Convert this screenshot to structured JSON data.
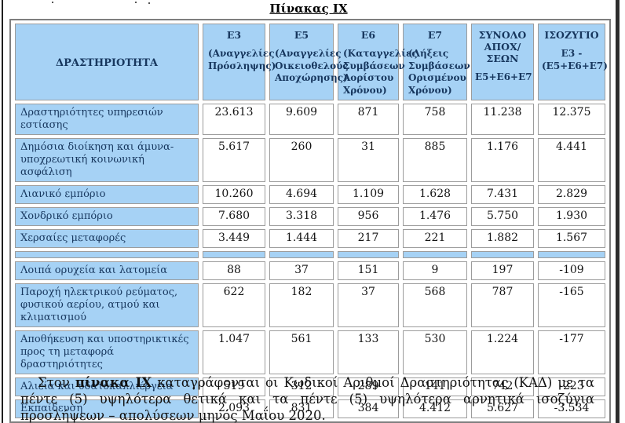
{
  "page": {
    "title": "Πίνακας IX"
  },
  "colors": {
    "cell_blue": "#A6D2F5",
    "header_text_navy": "#17375E",
    "border_gray": "#9c9c9c"
  },
  "table": {
    "header": {
      "activity": "ΔΡΑΣΤΗΡΙΟΤΗΤΑ",
      "columns": [
        {
          "code": "E3",
          "desc": "(Αναγγελίες Πρόσληψης)"
        },
        {
          "code": "E5",
          "desc": "(Αναγγελίες Οικειοθελούς Αποχώρησης)"
        },
        {
          "code": "E6",
          "desc": "(Καταγγελίες Συμβάσεων Αορίστου Χρόνου)"
        },
        {
          "code": "E7",
          "desc": "(Λήξεις Συμβάσεων Ορισμένου Χρόνου)"
        },
        {
          "code": "ΣΥΝΟΛΟ ΑΠΟΧ/ΣΕΩΝ",
          "desc": "E5+E6+E7"
        },
        {
          "code": "ΙΣΟΖΥΓΙΟ",
          "desc": "E3 - (E5+E6+E7)"
        }
      ]
    },
    "rows": [
      {
        "activity": "Δραστηριότητες υπηρεσιών εστίασης",
        "values": [
          "23.613",
          "9.609",
          "871",
          "758",
          "11.238",
          "12.375"
        ]
      },
      {
        "activity": "Δημόσια διοίκηση και άμυνα- υποχρεωτική κοινωνική ασφάλιση",
        "values": [
          "5.617",
          "260",
          "31",
          "885",
          "1.176",
          "4.441"
        ]
      },
      {
        "activity": "Λιανικό εμπόριο",
        "values": [
          "10.260",
          "4.694",
          "1.109",
          "1.628",
          "7.431",
          "2.829"
        ]
      },
      {
        "activity": "Χονδρικό εμπόριο",
        "values": [
          "7.680",
          "3.318",
          "956",
          "1.476",
          "5.750",
          "1.930"
        ]
      },
      {
        "activity": "Χερσαίες μεταφορές",
        "values": [
          "3.449",
          "1.444",
          "217",
          "221",
          "1.882",
          "1.567"
        ]
      },
      {
        "separator": true
      },
      {
        "activity": "Λοιπά ορυχεία και λατομεία",
        "values": [
          "88",
          "37",
          "151",
          "9",
          "197",
          "-109"
        ]
      },
      {
        "activity": "Παροχή ηλεκτρικού ρεύματος, φυσικού αερίου, ατμού και κλιματισμού",
        "values": [
          "622",
          "182",
          "37",
          "568",
          "787",
          "-165"
        ]
      },
      {
        "activity": "Αποθήκευση και υποστηρικτικές προς τη μεταφορά δραστηριότητες",
        "values": [
          "1.047",
          "561",
          "133",
          "530",
          "1.224",
          "-177"
        ]
      },
      {
        "activity": "Αλιεία και υδατοκαλλιέργεια",
        "values": [
          "519",
          "312",
          "289",
          "141",
          "742",
          "-223"
        ]
      },
      {
        "activity": "Εκπαίδευση",
        "values": [
          "2.093",
          "831",
          "384",
          "4.412",
          "5.627",
          "-3.534"
        ]
      }
    ]
  },
  "caption": {
    "prefix": "Στον ",
    "bold": "πίνακα IX",
    "suffix": " καταγράφονται οι  Κωδικοί Αριθμοί Δραστηριότητας (ΚΑΔ) με τα πέντε (5) υψηλότερα θετικά και τα πέντε (5) υψηλότερα αρνητικά ισοζύγια προσλήψεων – απολύσεων μηνός Μαΐου 2020."
  }
}
